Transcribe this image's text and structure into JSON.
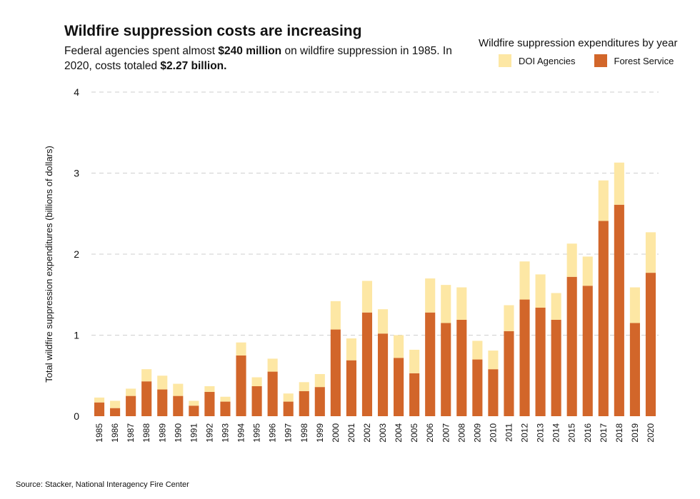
{
  "title": "Wildfire suppression costs are increasing",
  "subtitle": {
    "part1": "Federal agencies spent almost ",
    "bold1": "$240 million",
    "part2": " on wildfire suppression in 1985. In 2020, costs totaled ",
    "bold2": "$2.27 billion."
  },
  "legend": {
    "title": "Wildfire suppression expenditures by year",
    "items": [
      {
        "label": "DOI Agencies",
        "color": "#fde7a4"
      },
      {
        "label": "Forest Service",
        "color": "#d2662a"
      }
    ]
  },
  "source": "Source: Stacker, National Interagency Fire Center",
  "chart_data": {
    "type": "bar",
    "stacked": true,
    "ylabel": "Total wildfire suppression expenditures (billions of dollars)",
    "ylim": [
      0,
      4
    ],
    "yticks": [
      0,
      1,
      2,
      3,
      4
    ],
    "grid": true,
    "legend_position": "top-right",
    "categories": [
      "1985",
      "1986",
      "1987",
      "1988",
      "1989",
      "1990",
      "1991",
      "1992",
      "1993",
      "1994",
      "1995",
      "1996",
      "1997",
      "1998",
      "1999",
      "2000",
      "2001",
      "2002",
      "2003",
      "2004",
      "2005",
      "2006",
      "2007",
      "2008",
      "2009",
      "2010",
      "2011",
      "2012",
      "2013",
      "2014",
      "2015",
      "2016",
      "2017",
      "2018",
      "2019",
      "2020"
    ],
    "series": [
      {
        "name": "Forest Service",
        "color": "#d2662a",
        "values": [
          0.17,
          0.1,
          0.25,
          0.43,
          0.33,
          0.25,
          0.13,
          0.3,
          0.18,
          0.75,
          0.37,
          0.55,
          0.18,
          0.31,
          0.36,
          1.07,
          0.69,
          1.28,
          1.02,
          0.72,
          0.53,
          1.28,
          1.15,
          1.19,
          0.7,
          0.58,
          1.05,
          1.44,
          1.34,
          1.19,
          1.72,
          1.61,
          2.41,
          2.61,
          1.15,
          1.77
        ]
      },
      {
        "name": "DOI Agencies",
        "color": "#fde7a4",
        "values": [
          0.06,
          0.09,
          0.09,
          0.15,
          0.17,
          0.15,
          0.06,
          0.07,
          0.06,
          0.16,
          0.11,
          0.16,
          0.1,
          0.11,
          0.16,
          0.35,
          0.27,
          0.39,
          0.3,
          0.28,
          0.29,
          0.42,
          0.47,
          0.4,
          0.23,
          0.23,
          0.32,
          0.47,
          0.41,
          0.33,
          0.41,
          0.36,
          0.5,
          0.52,
          0.44,
          0.5
        ]
      }
    ]
  }
}
